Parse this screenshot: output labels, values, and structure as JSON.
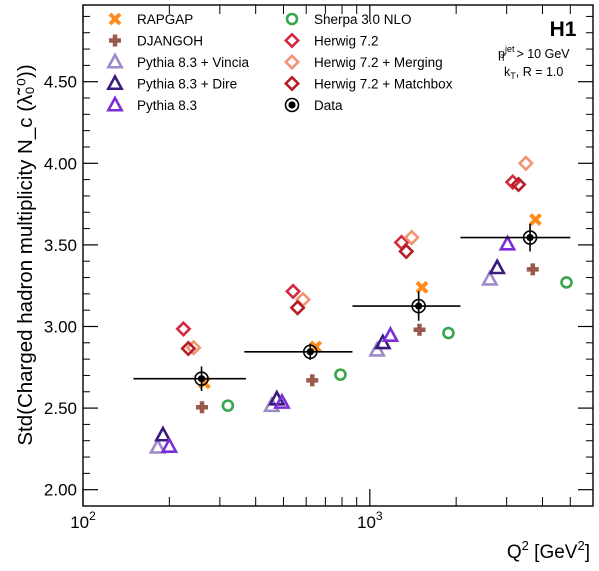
{
  "chart_data": {
    "type": "scatter",
    "title": "",
    "xlabel": "Q² [GeV²]",
    "ylabel": "Std(Charged hadron multiplicity N_c (λ̃₀⁰))",
    "x_scale": "log",
    "xlim": [
      100,
      6000
    ],
    "ylim": [
      1.9,
      4.97
    ],
    "x_ticks": [
      {
        "value": 100,
        "label": "10²"
      },
      {
        "value": 1000,
        "label": "10³"
      }
    ],
    "y_ticks": [
      2.0,
      2.5,
      3.0,
      3.5,
      4.0,
      4.5
    ],
    "y_tick_labels": [
      "2.00",
      "2.50",
      "3.00",
      "3.50",
      "4.00",
      "4.50"
    ],
    "grid": false,
    "legend_position": "top-left",
    "annotation": {
      "experiment": "H1",
      "cut_main": "p",
      "cut_sup": "jet",
      "cut_sub": "T",
      "cut_rest": " > 10 GeV",
      "algo_main": "k",
      "algo_sub": "T",
      "algo_rest": ", R = 1.0"
    },
    "series": [
      {
        "name": "RAPGAP",
        "marker": "cross-x",
        "color": "#ff8c1a",
        "x": [
          265,
          648,
          1520,
          3780
        ],
        "y": [
          2.655,
          2.875,
          3.24,
          3.655
        ]
      },
      {
        "name": "DJANGOH",
        "marker": "cross-plus",
        "color": "#99594d",
        "x": [
          260,
          630,
          1490,
          3700
        ],
        "y": [
          2.505,
          2.67,
          2.98,
          3.35
        ]
      },
      {
        "name": "Pythia 8.3 + Vincia",
        "marker": "triangle",
        "color": "#9f8ac9",
        "x": [
          182,
          455,
          1060,
          2620
        ],
        "y": [
          2.26,
          2.515,
          2.855,
          3.29
        ]
      },
      {
        "name": "Pythia 8.3 + Dire",
        "marker": "triangle",
        "color": "#3a1a7a",
        "x": [
          190,
          474,
          1110,
          2780
        ],
        "y": [
          2.335,
          2.555,
          2.9,
          3.36
        ]
      },
      {
        "name": "Pythia 8.3",
        "marker": "triangle",
        "color": "#7b2ed6",
        "x": [
          200,
          494,
          1180,
          3020
        ],
        "y": [
          2.265,
          2.535,
          2.945,
          3.505
        ]
      },
      {
        "name": "Sherpa 3.0 NLO",
        "marker": "circle",
        "color": "#36a64a",
        "x": [
          320,
          790,
          1880,
          4850
        ],
        "y": [
          2.515,
          2.705,
          2.96,
          3.27
        ]
      },
      {
        "name": "Herwig 7.2",
        "marker": "diamond",
        "color": "#d42a40",
        "x": [
          224,
          540,
          1290,
          3150
        ],
        "y": [
          2.985,
          3.215,
          3.515,
          3.885
        ]
      },
      {
        "name": "Herwig 7.2 + Merging",
        "marker": "diamond",
        "color": "#f29473",
        "x": [
          243,
          585,
          1400,
          3500
        ],
        "y": [
          2.87,
          3.165,
          3.545,
          4.0
        ]
      },
      {
        "name": "Herwig 7.2 + Matchbox",
        "marker": "diamond",
        "color": "#b51f24",
        "x": [
          233,
          560,
          1340,
          3300
        ],
        "y": [
          2.865,
          3.115,
          3.46,
          3.87
        ]
      },
      {
        "name": "Data",
        "marker": "data-point",
        "color": "#000000",
        "x": [
          259,
          620,
          1480,
          3620
        ],
        "y": [
          2.68,
          2.845,
          3.125,
          3.545
        ],
        "x_low": [
          150,
          365,
          870,
          2070
        ],
        "x_high": [
          370,
          870,
          2070,
          5000
        ],
        "y_err": [
          0.075,
          0.05,
          0.09,
          0.085
        ]
      }
    ]
  }
}
